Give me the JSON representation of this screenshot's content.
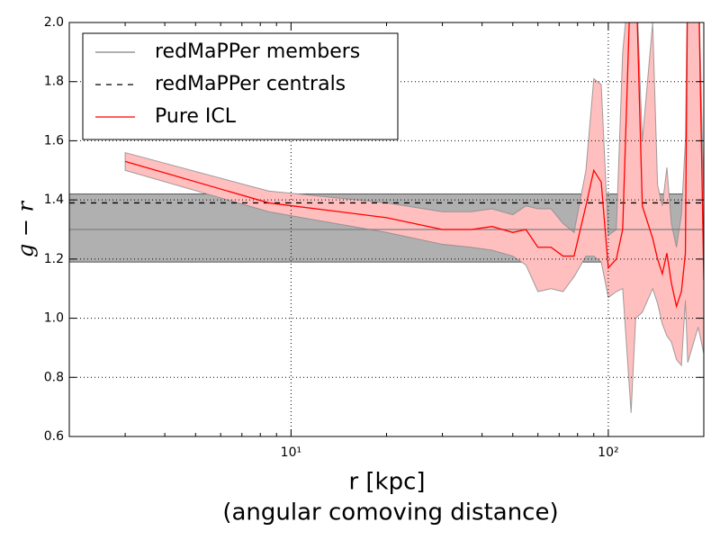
{
  "chart_data": {
    "type": "line",
    "xlabel": [
      "r [kpc]",
      "(angular comoving distance)"
    ],
    "ylabel": "g − r",
    "xscale": "log",
    "xlim": [
      2,
      200
    ],
    "ylim": [
      0.6,
      2.0
    ],
    "xticks": [
      {
        "value": 10,
        "label": "10¹"
      },
      {
        "value": 100,
        "label": "10²"
      }
    ],
    "xticks_minor": [
      2,
      3,
      4,
      5,
      6,
      7,
      8,
      9,
      20,
      30,
      40,
      50,
      60,
      70,
      80,
      90,
      200
    ],
    "yticks": [
      0.6,
      0.8,
      {
        "value": 1.0,
        "label": "1.0"
      },
      1.2,
      1.4,
      1.6,
      1.8,
      {
        "value": 2.0,
        "label": "2.0"
      }
    ],
    "grid": true,
    "legend": "upper left",
    "series": [
      {
        "name": "redMaPPer members",
        "color": "#808080",
        "kind": "hline",
        "value": 1.3,
        "band": [
          1.19,
          1.42
        ],
        "band_color": "#b0b0b0"
      },
      {
        "name": "redMaPPer centrals",
        "color": "#000000",
        "kind": "hline",
        "dashed": true,
        "value": 1.39
      },
      {
        "name": "Pure ICL",
        "color": "#ff0000",
        "kind": "line",
        "band_color": "#ffbfbf",
        "x": [
          3,
          8.5,
          20,
          30,
          37,
          43,
          50,
          55,
          60,
          66,
          72,
          78,
          85,
          90,
          95,
          100,
          106,
          111,
          118,
          122,
          128,
          138,
          143,
          148,
          153,
          158,
          164,
          170,
          175,
          178,
          192,
          200
        ],
        "values": [
          1.53,
          1.39,
          1.34,
          1.3,
          1.3,
          1.31,
          1.29,
          1.3,
          1.24,
          1.24,
          1.21,
          1.21,
          1.38,
          1.5,
          1.46,
          1.17,
          1.2,
          1.3,
          2.2,
          2.2,
          1.38,
          1.27,
          1.2,
          1.15,
          1.22,
          1.12,
          1.04,
          1.09,
          1.22,
          2.2,
          2.2,
          1.13
        ],
        "upper": [
          1.56,
          1.43,
          1.39,
          1.36,
          1.36,
          1.37,
          1.35,
          1.38,
          1.37,
          1.37,
          1.32,
          1.29,
          1.5,
          1.81,
          1.79,
          1.28,
          1.3,
          1.9,
          2.2,
          2.2,
          1.6,
          2.0,
          1.45,
          1.38,
          1.51,
          1.32,
          1.24,
          1.35,
          1.6,
          2.2,
          2.2,
          1.4
        ],
        "lower": [
          1.5,
          1.36,
          1.29,
          1.25,
          1.24,
          1.23,
          1.21,
          1.18,
          1.09,
          1.1,
          1.09,
          1.14,
          1.21,
          1.21,
          1.19,
          1.07,
          1.09,
          1.1,
          0.68,
          1.0,
          1.02,
          1.1,
          1.05,
          0.98,
          0.94,
          0.92,
          0.86,
          0.84,
          1.06,
          0.85,
          0.97,
          0.88
        ]
      }
    ]
  }
}
